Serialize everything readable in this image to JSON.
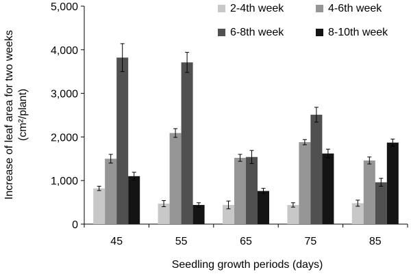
{
  "chart_data": {
    "type": "bar",
    "categories": [
      "45",
      "55",
      "65",
      "75",
      "85"
    ],
    "xlabel": "Seedling growth periods (days)",
    "ylabel_line1": "Increase of leaf area for two weeks",
    "ylabel_line2": "(cm²/plant)",
    "ylim": [
      0,
      5000
    ],
    "yticks": [
      0,
      1000,
      2000,
      3000,
      4000,
      5000
    ],
    "ytick_labels": [
      "0",
      "1,000",
      "2,000",
      "3,000",
      "4,000",
      "5,000"
    ],
    "legend_position": "top-right",
    "grid": false,
    "series": [
      {
        "name": "2-4th week",
        "color": "#c8c8c8",
        "values": [
          820,
          470,
          440,
          440,
          480
        ],
        "errors": [
          50,
          70,
          90,
          50,
          70
        ]
      },
      {
        "name": "4-6th week",
        "color": "#969696",
        "values": [
          1500,
          2090,
          1520,
          1880,
          1460
        ],
        "errors": [
          100,
          100,
          80,
          60,
          80
        ]
      },
      {
        "name": "6-8th week",
        "color": "#505050",
        "values": [
          3820,
          3710,
          1540,
          2510,
          960
        ],
        "errors": [
          320,
          230,
          150,
          170,
          90
        ]
      },
      {
        "name": "8-10th week",
        "color": "#141414",
        "values": [
          1100,
          440,
          760,
          1620,
          1870
        ],
        "errors": [
          90,
          50,
          60,
          100,
          80
        ]
      }
    ]
  }
}
